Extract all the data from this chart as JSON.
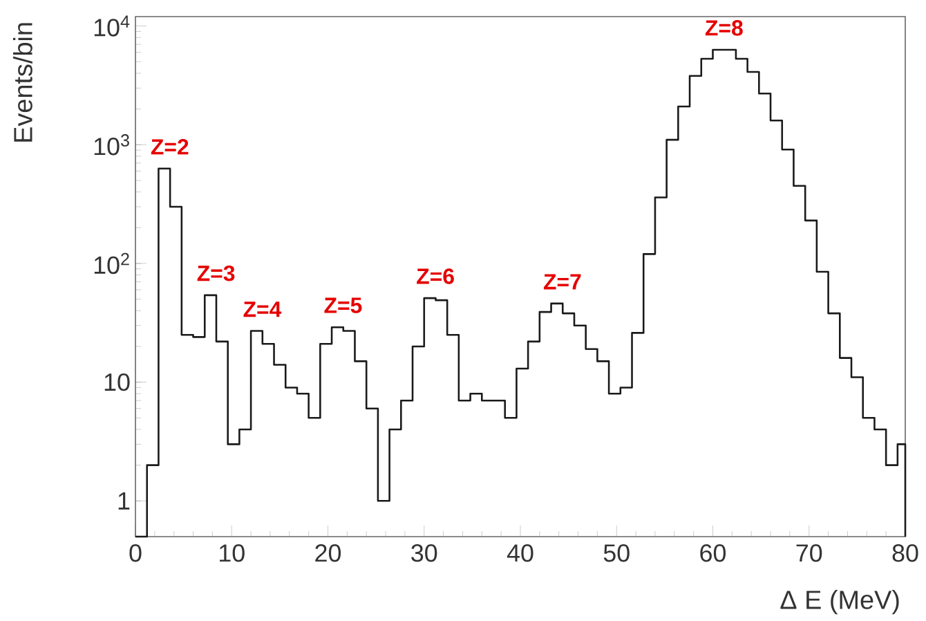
{
  "chart_data": {
    "type": "histogram",
    "xlabel": "Δ E (MeV)",
    "ylabel": "Events/bin",
    "log": "y",
    "color": "#1a1a1a",
    "bins": [
      0,
      1.2,
      2.4,
      3.6,
      4.8,
      6,
      7.2,
      8.4,
      9.6,
      10.8,
      12,
      13.2,
      14.4,
      15.6,
      16.8,
      18,
      19.2,
      20.4,
      21.6,
      22.8,
      24,
      25.2,
      26.4,
      27.6,
      28.8,
      30,
      31.2,
      32.4,
      33.6,
      34.8,
      36,
      37.2,
      38.4,
      39.6,
      40.8,
      42,
      43.2,
      44.4,
      45.6,
      46.8,
      48,
      49.2,
      50.4,
      51.6,
      52.8,
      54,
      55.2,
      56.4,
      57.6,
      58.8,
      60,
      61.2,
      62.4,
      63.6,
      64.8,
      66,
      67.2,
      68.4,
      69.6,
      70.8,
      72,
      73.2,
      74.4,
      75.6,
      76.8,
      78,
      79.2,
      80
    ],
    "values": [
      null,
      2,
      630,
      300,
      25,
      24,
      54,
      22,
      3,
      4,
      27,
      21,
      14,
      9,
      8,
      5,
      21,
      29,
      27,
      15,
      6,
      1,
      4,
      7,
      20,
      51,
      49,
      25,
      7,
      8,
      7,
      7,
      5,
      13,
      22,
      39,
      46,
      38,
      30,
      19,
      15,
      8,
      9,
      26,
      120,
      360,
      1100,
      2100,
      3800,
      5300,
      6300,
      6300,
      5300,
      4100,
      2700,
      1600,
      910,
      450,
      230,
      85,
      38,
      16,
      11,
      5,
      4,
      2,
      3
    ],
    "xlim": [
      0,
      80
    ],
    "ylim": [
      0.5,
      12000
    ],
    "xticks": [
      0,
      10,
      20,
      30,
      40,
      50,
      60,
      70,
      80
    ],
    "yticks": [
      {
        "value": 1,
        "label": "1"
      },
      {
        "value": 10,
        "label": "10"
      },
      {
        "value": 100,
        "label": "10$^{2}$"
      },
      {
        "value": 1000,
        "label": "10$^{3}$"
      },
      {
        "value": 10000,
        "label": "10$^{4}$"
      }
    ],
    "annotations": [
      {
        "text": "Z=2",
        "x": 3.0,
        "y": 630
      },
      {
        "text": "Z=3",
        "x": 7.8,
        "y": 54
      },
      {
        "text": "Z=4",
        "x": 12.6,
        "y": 27
      },
      {
        "text": "Z=5",
        "x": 21.0,
        "y": 29
      },
      {
        "text": "Z=6",
        "x": 30.6,
        "y": 51
      },
      {
        "text": "Z=7",
        "x": 43.8,
        "y": 46
      },
      {
        "text": "Z=8",
        "x": 60.6,
        "y": 6300
      }
    ]
  }
}
